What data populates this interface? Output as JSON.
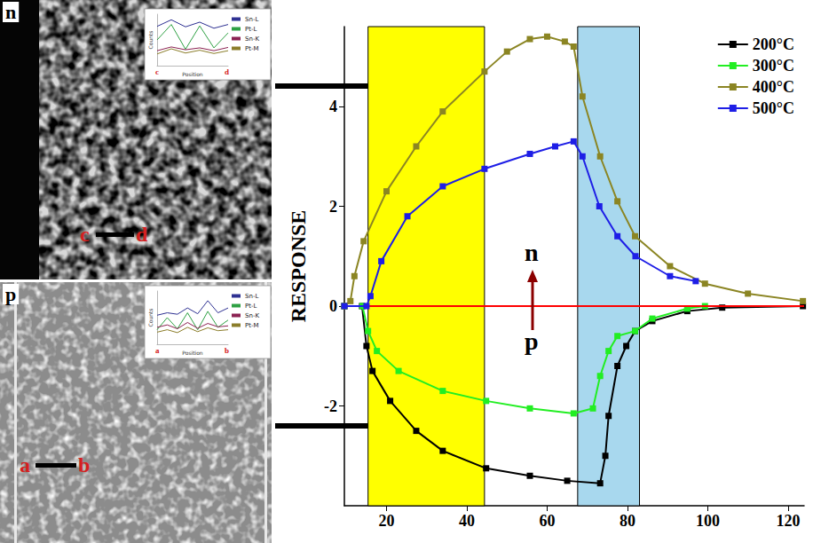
{
  "chart_data": [
    {
      "type": "line",
      "y_label": "RESPONSE",
      "xlim": [
        9.5,
        124
      ],
      "xticks": [
        20,
        40,
        60,
        80,
        100,
        120
      ],
      "ylim": [
        -4,
        5.6
      ],
      "yticks": [
        -2,
        0,
        2,
        4
      ],
      "grid": false,
      "legend": "upper right",
      "marker": "square",
      "line_style": "solid",
      "hline": {
        "value": 0,
        "color": "#ff0000"
      },
      "shaded_regions": [
        {
          "x": [
            15.4,
            44.4
          ],
          "color": "#ffff00"
        },
        {
          "x": [
            67.6,
            83
          ],
          "color": "#a8d8ee"
        }
      ],
      "annotations": [
        "n",
        "p"
      ],
      "series": [
        {
          "name": "200°C",
          "color": "#000000",
          "x": [
            9.5,
            13.9,
            15.0,
            16.5,
            20.9,
            27.4,
            34,
            44.8,
            55.7,
            65,
            73.2,
            74.5,
            75.3,
            77.5,
            79.7,
            81.9,
            86.2,
            94.9,
            103.6,
            123.7
          ],
          "values": [
            0,
            0,
            -0.8,
            -1.3,
            -1.9,
            -2.5,
            -2.9,
            -3.25,
            -3.4,
            -3.5,
            -3.55,
            -3.0,
            -2.2,
            -1.2,
            -0.8,
            -0.5,
            -0.3,
            -0.1,
            -0.03,
            0
          ]
        },
        {
          "name": "300°C",
          "color": "#22ee22",
          "x": [
            9.5,
            14,
            15.4,
            17.6,
            23,
            34,
            44.8,
            55.7,
            66.6,
            71.4,
            73.2,
            75.3,
            77.5,
            81.9,
            86.2,
            94.9,
            99.3
          ],
          "values": [
            0,
            0,
            -0.5,
            -0.9,
            -1.3,
            -1.7,
            -1.9,
            -2.05,
            -2.15,
            -2.05,
            -1.4,
            -0.9,
            -0.6,
            -0.5,
            -0.25,
            -0.05,
            0
          ]
        },
        {
          "name": "400°C",
          "color": "#8b8523",
          "x": [
            9.5,
            11,
            12,
            14.3,
            20,
            27.4,
            34,
            44.4,
            50,
            55.7,
            60,
            64.4,
            66.6,
            68.8,
            73.2,
            77.5,
            81.9,
            90.6,
            99.3,
            110,
            123.7
          ],
          "values": [
            0,
            0.1,
            0.6,
            1.3,
            2.3,
            3.2,
            3.9,
            4.7,
            5.1,
            5.35,
            5.4,
            5.3,
            5.2,
            4.2,
            3.0,
            2.1,
            1.4,
            0.8,
            0.45,
            0.25,
            0.1
          ]
        },
        {
          "name": "500°C",
          "color": "#1e1ee6",
          "x": [
            9.5,
            15,
            16,
            18.7,
            25.2,
            34,
            44.4,
            55.7,
            62,
            66.6,
            68.8,
            73,
            77.5,
            82,
            90.6,
            97
          ],
          "values": [
            0,
            0,
            0.2,
            0.9,
            1.8,
            2.4,
            2.75,
            3.05,
            3.2,
            3.3,
            3.0,
            2.0,
            1.4,
            1.0,
            0.6,
            0.5
          ]
        }
      ]
    },
    {
      "type": "line",
      "x_label": "Position",
      "y_label": "Counts",
      "xlim": [
        0,
        5
      ],
      "ylim": [
        0,
        11
      ],
      "tick_labels": false,
      "line_style": "solid",
      "series": [
        {
          "name": "Sn-L",
          "color": "#2e3192",
          "x": [
            0,
            1,
            2,
            3,
            4,
            5
          ],
          "values": [
            8.4,
            9.8,
            8.3,
            9.3,
            8.0,
            8.8
          ]
        },
        {
          "name": "Pt-L",
          "color": "#2ea043",
          "x": [
            0,
            1,
            2,
            3,
            4,
            5
          ],
          "values": [
            5.5,
            8.8,
            3.5,
            8.5,
            3.8,
            7.0
          ]
        },
        {
          "name": "Sn-K",
          "color": "#8b2252",
          "x": [
            0,
            1,
            2,
            3,
            4,
            5
          ],
          "values": [
            3.2,
            4.0,
            3.4,
            3.8,
            3.2,
            3.9
          ]
        },
        {
          "name": "Pt-M",
          "color": "#8b7d2a",
          "x": [
            0,
            1,
            2,
            3,
            4,
            5
          ],
          "values": [
            2.5,
            3.6,
            2.7,
            3.3,
            2.6,
            3.2
          ]
        }
      ]
    },
    {
      "type": "line",
      "x_label": "Position",
      "y_label": "Counts",
      "xlim": [
        0,
        7
      ],
      "ylim": [
        0,
        11
      ],
      "tick_labels": false,
      "line_style": "solid",
      "series": [
        {
          "name": "Sn-L",
          "color": "#2e3192",
          "x": [
            0,
            1,
            2,
            3,
            4,
            5,
            6,
            7
          ],
          "values": [
            6.0,
            6.5,
            6.2,
            7.5,
            6.3,
            9.0,
            6.5,
            7.5
          ]
        },
        {
          "name": "Pt-L",
          "color": "#2ea043",
          "x": [
            0,
            1,
            2,
            3,
            4,
            5,
            6,
            7
          ],
          "values": [
            3.0,
            5.5,
            3.2,
            6.5,
            3.0,
            6.8,
            3.5,
            5.0
          ]
        },
        {
          "name": "Sn-K",
          "color": "#8b2252",
          "x": [
            0,
            1,
            2,
            3,
            4,
            5,
            6,
            7
          ],
          "values": [
            3.5,
            4.0,
            3.2,
            4.5,
            3.3,
            4.3,
            3.6,
            3.8
          ]
        },
        {
          "name": "Pt-M",
          "color": "#8b7d2a",
          "x": [
            0,
            1,
            2,
            3,
            4,
            5,
            6,
            7
          ],
          "values": [
            2.5,
            3.0,
            2.4,
            3.5,
            2.6,
            3.4,
            2.8,
            3.0
          ]
        }
      ]
    }
  ],
  "panels": [
    {
      "label": "n",
      "line_ends": [
        "c",
        "d"
      ]
    },
    {
      "label": "p",
      "line_ends": [
        "a",
        "b"
      ]
    }
  ]
}
